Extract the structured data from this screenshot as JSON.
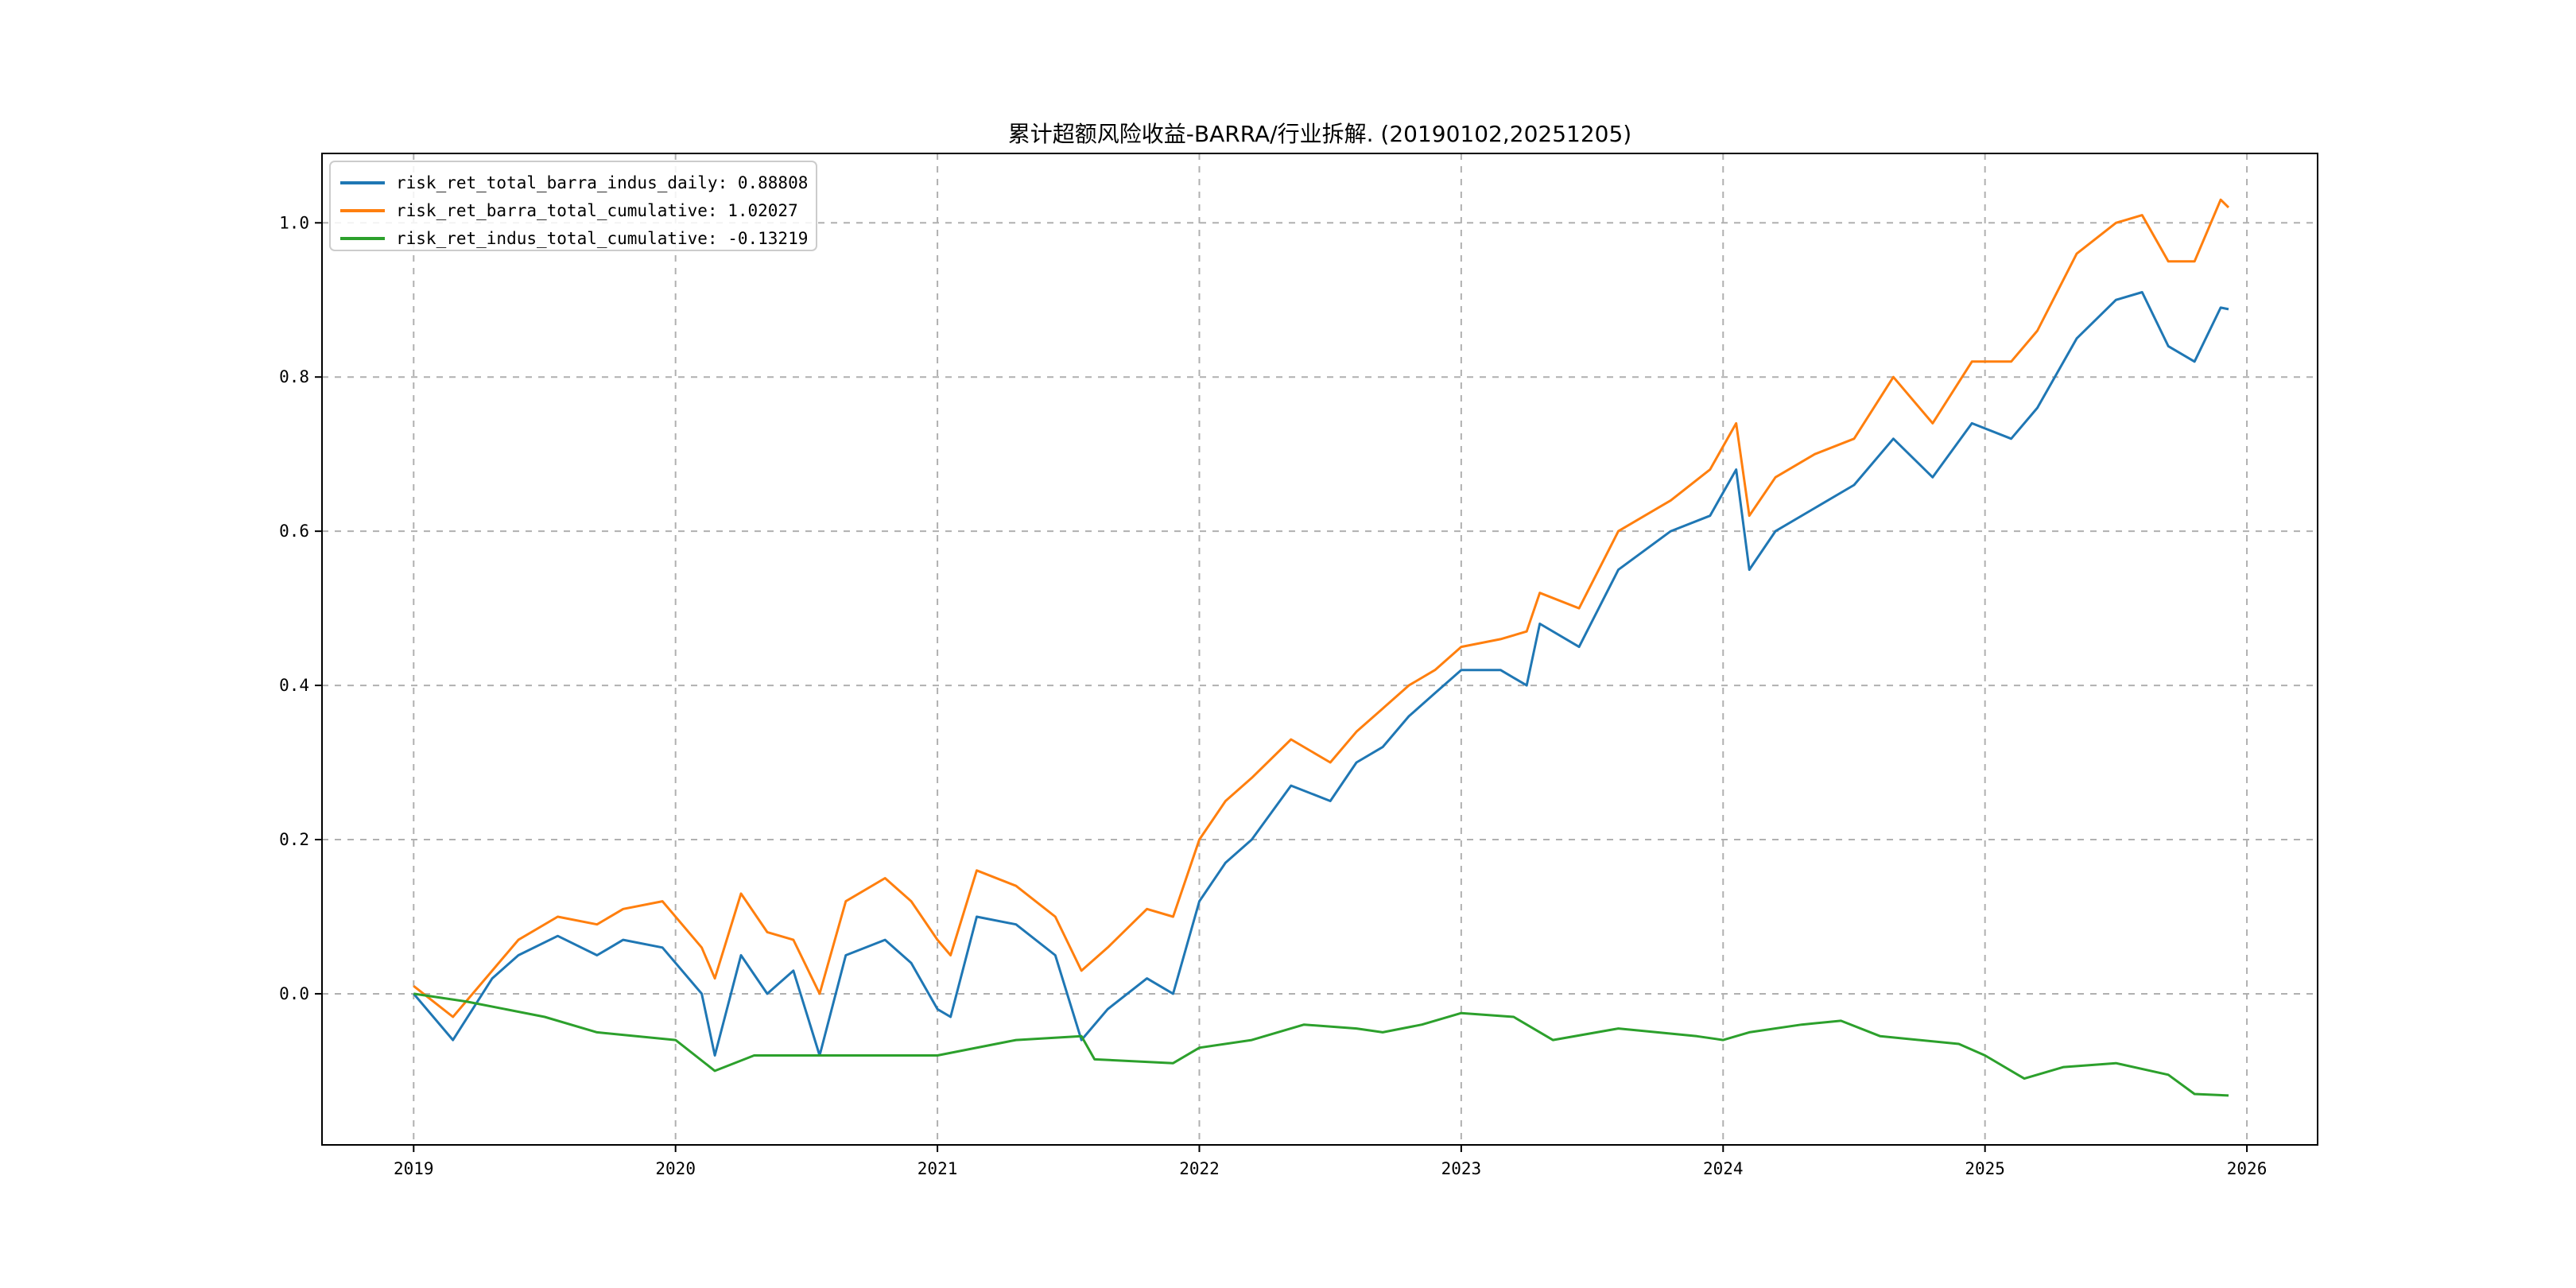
{
  "chart_data": {
    "type": "line",
    "title": "累计超额风险收益-BARRA/行业拆解. (20190102,20251205)",
    "xlabel": "",
    "ylabel": "",
    "xlim": [
      2018.65,
      2026.27
    ],
    "ylim": [
      -0.196,
      1.09
    ],
    "x_ticks": [
      "2019",
      "2020",
      "2021",
      "2022",
      "2023",
      "2024",
      "2025",
      "2026"
    ],
    "x_tick_values": [
      2019,
      2020,
      2021,
      2022,
      2023,
      2024,
      2025,
      2026
    ],
    "y_ticks": [
      "0.0",
      "0.2",
      "0.4",
      "0.6",
      "0.8",
      "1.0"
    ],
    "y_tick_values": [
      0,
      0.2,
      0.4,
      0.6,
      0.8,
      1.0
    ],
    "grid": true,
    "legend_position": "top-left",
    "series": [
      {
        "name": "risk_ret_total_barra_indus_daily: 0.88808",
        "color": "#1f77b4",
        "x": [
          2019.0,
          2019.15,
          2019.3,
          2019.4,
          2019.55,
          2019.7,
          2019.8,
          2019.95,
          2020.1,
          2020.15,
          2020.25,
          2020.35,
          2020.45,
          2020.55,
          2020.65,
          2020.8,
          2020.9,
          2021.0,
          2021.05,
          2021.15,
          2021.3,
          2021.45,
          2021.55,
          2021.65,
          2021.8,
          2021.9,
          2022.0,
          2022.1,
          2022.2,
          2022.35,
          2022.5,
          2022.6,
          2022.7,
          2022.8,
          2022.9,
          2023.0,
          2023.15,
          2023.25,
          2023.3,
          2023.45,
          2023.6,
          2023.8,
          2023.95,
          2024.05,
          2024.1,
          2024.2,
          2024.35,
          2024.5,
          2024.65,
          2024.8,
          2024.95,
          2025.1,
          2025.2,
          2025.35,
          2025.5,
          2025.6,
          2025.7,
          2025.8,
          2025.9,
          2025.93
        ],
        "y": [
          0.0,
          -0.06,
          0.02,
          0.05,
          0.075,
          0.05,
          0.07,
          0.06,
          0.0,
          -0.08,
          0.05,
          0.0,
          0.03,
          -0.08,
          0.05,
          0.07,
          0.04,
          -0.02,
          -0.03,
          0.1,
          0.09,
          0.05,
          -0.06,
          -0.02,
          0.02,
          0.0,
          0.12,
          0.17,
          0.2,
          0.27,
          0.25,
          0.3,
          0.32,
          0.36,
          0.39,
          0.42,
          0.42,
          0.4,
          0.48,
          0.45,
          0.55,
          0.6,
          0.62,
          0.68,
          0.55,
          0.6,
          0.63,
          0.66,
          0.72,
          0.67,
          0.74,
          0.72,
          0.76,
          0.85,
          0.9,
          0.91,
          0.84,
          0.82,
          0.89,
          0.888
        ]
      },
      {
        "name": "risk_ret_barra_total_cumulative: 1.02027",
        "color": "#ff7f0e",
        "x": [
          2019.0,
          2019.15,
          2019.3,
          2019.4,
          2019.55,
          2019.7,
          2019.8,
          2019.95,
          2020.1,
          2020.15,
          2020.25,
          2020.35,
          2020.45,
          2020.55,
          2020.65,
          2020.8,
          2020.9,
          2021.0,
          2021.05,
          2021.15,
          2021.3,
          2021.45,
          2021.55,
          2021.65,
          2021.8,
          2021.9,
          2022.0,
          2022.1,
          2022.2,
          2022.35,
          2022.5,
          2022.6,
          2022.7,
          2022.8,
          2022.9,
          2023.0,
          2023.15,
          2023.25,
          2023.3,
          2023.45,
          2023.6,
          2023.8,
          2023.95,
          2024.05,
          2024.1,
          2024.2,
          2024.35,
          2024.5,
          2024.65,
          2024.8,
          2024.95,
          2025.1,
          2025.2,
          2025.35,
          2025.5,
          2025.6,
          2025.7,
          2025.8,
          2025.9,
          2025.93
        ],
        "y": [
          0.01,
          -0.03,
          0.03,
          0.07,
          0.1,
          0.09,
          0.11,
          0.12,
          0.06,
          0.02,
          0.13,
          0.08,
          0.07,
          0.0,
          0.12,
          0.15,
          0.12,
          0.07,
          0.05,
          0.16,
          0.14,
          0.1,
          0.03,
          0.06,
          0.11,
          0.1,
          0.2,
          0.25,
          0.28,
          0.33,
          0.3,
          0.34,
          0.37,
          0.4,
          0.42,
          0.45,
          0.46,
          0.47,
          0.52,
          0.5,
          0.6,
          0.64,
          0.68,
          0.74,
          0.62,
          0.67,
          0.7,
          0.72,
          0.8,
          0.74,
          0.82,
          0.82,
          0.86,
          0.96,
          1.0,
          1.01,
          0.95,
          0.95,
          1.03,
          1.02
        ]
      },
      {
        "name": "risk_ret_indus_total_cumulative: -0.13219",
        "color": "#2ca02c",
        "x": [
          2019.0,
          2019.2,
          2019.5,
          2019.7,
          2020.0,
          2020.15,
          2020.3,
          2020.6,
          2020.9,
          2021.0,
          2021.3,
          2021.55,
          2021.6,
          2021.9,
          2022.0,
          2022.2,
          2022.4,
          2022.6,
          2022.7,
          2022.85,
          2023.0,
          2023.2,
          2023.35,
          2023.6,
          2023.9,
          2024.0,
          2024.1,
          2024.3,
          2024.45,
          2024.6,
          2024.9,
          2025.0,
          2025.15,
          2025.3,
          2025.5,
          2025.7,
          2025.8,
          2025.93
        ],
        "y": [
          0.0,
          -0.01,
          -0.03,
          -0.05,
          -0.06,
          -0.1,
          -0.08,
          -0.08,
          -0.08,
          -0.08,
          -0.06,
          -0.055,
          -0.085,
          -0.09,
          -0.07,
          -0.06,
          -0.04,
          -0.045,
          -0.05,
          -0.04,
          -0.025,
          -0.03,
          -0.06,
          -0.045,
          -0.055,
          -0.06,
          -0.05,
          -0.04,
          -0.035,
          -0.055,
          -0.065,
          -0.08,
          -0.11,
          -0.095,
          -0.09,
          -0.105,
          -0.13,
          -0.132
        ]
      }
    ]
  }
}
